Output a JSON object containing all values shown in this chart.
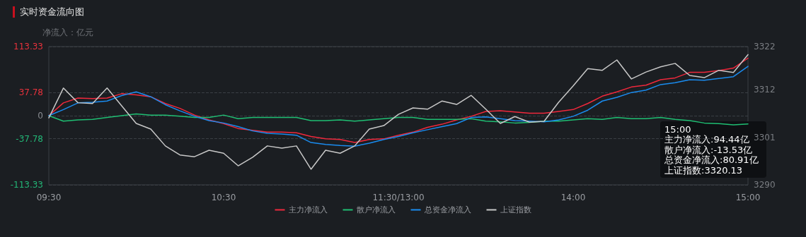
{
  "chart_data": {
    "type": "line",
    "title": "实时资金流向图",
    "ylabel": "净流入：亿元",
    "categories": [
      "09:30",
      null,
      null,
      null,
      null,
      null,
      null,
      null,
      null,
      null,
      null,
      null,
      "10:30",
      null,
      null,
      null,
      null,
      null,
      null,
      null,
      null,
      null,
      null,
      null,
      "11:30/13:00",
      null,
      null,
      null,
      null,
      null,
      null,
      null,
      null,
      null,
      null,
      null,
      "14:00",
      null,
      null,
      null,
      null,
      null,
      null,
      null,
      null,
      null,
      null,
      null,
      "15:00"
    ],
    "series": [
      {
        "name": "主力净流入",
        "color": "#f0283c",
        "values": [
          0,
          21,
          29,
          28,
          29,
          36,
          34,
          31,
          20,
          12,
          1,
          -7,
          -13,
          -21,
          -24,
          -27,
          -27,
          -28,
          -34,
          -38,
          -39,
          -44,
          -39,
          -38,
          -32,
          -27,
          -19,
          -14,
          -7,
          -1,
          7,
          8,
          6,
          4,
          4,
          7,
          10,
          20,
          32,
          39,
          47,
          50,
          59,
          62,
          71,
          71,
          74,
          78,
          94.44
        ]
      },
      {
        "name": "散户净流入",
        "color": "#1fbf73",
        "values": [
          0,
          -9,
          -7,
          -6,
          -3,
          0,
          3,
          1,
          1,
          -1,
          -3,
          -3,
          1,
          -5,
          -3,
          -3,
          -3,
          -3,
          -8,
          -8,
          -7,
          -9,
          -7,
          -5,
          -3,
          -3,
          -6,
          -6,
          -6,
          -5,
          -9,
          -10,
          -12,
          -11,
          -9,
          -9,
          -7,
          -5,
          -6,
          -3,
          -5,
          -5,
          -3,
          -6,
          -8,
          -12,
          -13,
          -15,
          -13.53
        ]
      },
      {
        "name": "总资金净流入",
        "color": "#1a8cf0",
        "values": [
          0,
          10,
          21,
          22,
          24,
          33,
          39,
          31,
          18,
          8,
          -1,
          -8,
          -12,
          -18,
          -25,
          -29,
          -30,
          -32,
          -44,
          -47,
          -49,
          -50,
          -45,
          -39,
          -34,
          -28,
          -23,
          -18,
          -13,
          -3,
          -2,
          -5,
          -8,
          -9,
          -10,
          -7,
          -1,
          9,
          24,
          30,
          38,
          42,
          51,
          54,
          59,
          58,
          61,
          64,
          80.91
        ]
      },
      {
        "name": "上证指数",
        "color": "#c8c8c8",
        "axis": "y2",
        "values": [
          3305.5,
          3312.4,
          3309,
          3308.8,
          3312.4,
          3308.3,
          3304.2,
          3302.9,
          3299,
          3296.9,
          3296.5,
          3298,
          3297.3,
          3294.4,
          3296.4,
          3299,
          3298.5,
          3299,
          3293.6,
          3298,
          3297.3,
          3299,
          3302.9,
          3303.7,
          3306.3,
          3307.8,
          3307.5,
          3309.4,
          3308.6,
          3310.7,
          3307.5,
          3304.2,
          3305.8,
          3304.5,
          3304.7,
          3309.1,
          3312.9,
          3316.9,
          3316.5,
          3318.9,
          3314.5,
          3316.1,
          3317.3,
          3318.1,
          3315.3,
          3314.8,
          3316.5,
          3316,
          3320.13
        ]
      }
    ],
    "ylim": [
      -113.33,
      113.33
    ],
    "yticks": [
      -113.33,
      -37.78,
      0,
      37.78,
      113.33
    ],
    "y2lim": [
      3290,
      3322
    ],
    "y2ticks": [
      3290,
      3301,
      3312,
      3322
    ],
    "grid": "y",
    "legend": "bottom",
    "marker": "none",
    "line_style": "solid",
    "annotations": [
      "15:00",
      "主力净流入:94.44亿",
      "散户净流入:-13.53亿",
      "总资金净流入:80.91亿",
      "上证指数:3320.13"
    ]
  }
}
